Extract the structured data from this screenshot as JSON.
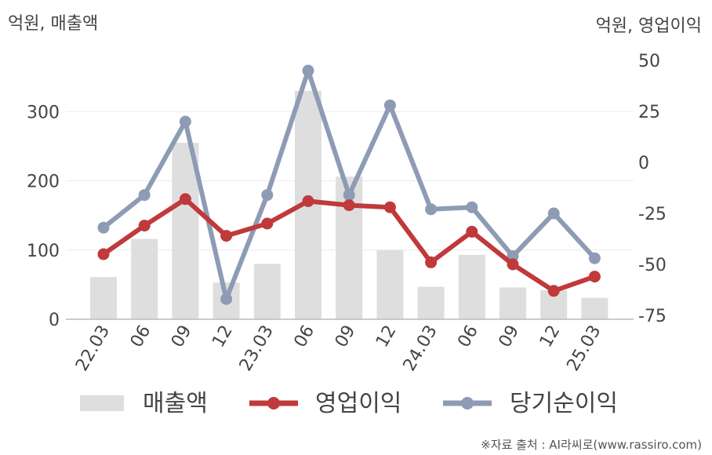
{
  "chart_data": {
    "type": "bar+line",
    "categories": [
      "22.03",
      "06",
      "09",
      "12",
      "23.03",
      "06",
      "09",
      "12",
      "24.03",
      "06",
      "09",
      "12",
      "25.03"
    ],
    "left_axis": {
      "title": "억원, 매출액",
      "ylim": [
        0,
        400
      ],
      "ticks": [
        0,
        100,
        200,
        300
      ]
    },
    "right_axis": {
      "title": "억원, 영업이익",
      "ylim": [
        -75,
        50
      ],
      "ticks": [
        50,
        25,
        0,
        -25,
        -50,
        -75
      ]
    },
    "series": [
      {
        "name": "매출액",
        "type": "bar",
        "axis": "left",
        "color": "#dedede",
        "values": [
          61,
          116,
          255,
          53,
          80,
          330,
          206,
          100,
          47,
          93,
          46,
          42,
          31
        ]
      },
      {
        "name": "영업이익",
        "type": "line",
        "axis": "right",
        "color": "#c0393b",
        "values": [
          -45,
          -31,
          -18,
          -36,
          -30,
          -19,
          -21,
          -22,
          -49,
          -34,
          -50,
          -63,
          -56
        ]
      },
      {
        "name": "당기순이익",
        "type": "line",
        "axis": "right",
        "color": "#8e9bb5",
        "values": [
          -32,
          -16,
          20,
          -67,
          -16,
          45,
          -16,
          28,
          -23,
          -22,
          -46,
          -25,
          -47
        ]
      }
    ],
    "grid": true,
    "legend_position": "bottom",
    "source": "※자료 출처 : AI라씨로(www.rassiro.com)"
  }
}
